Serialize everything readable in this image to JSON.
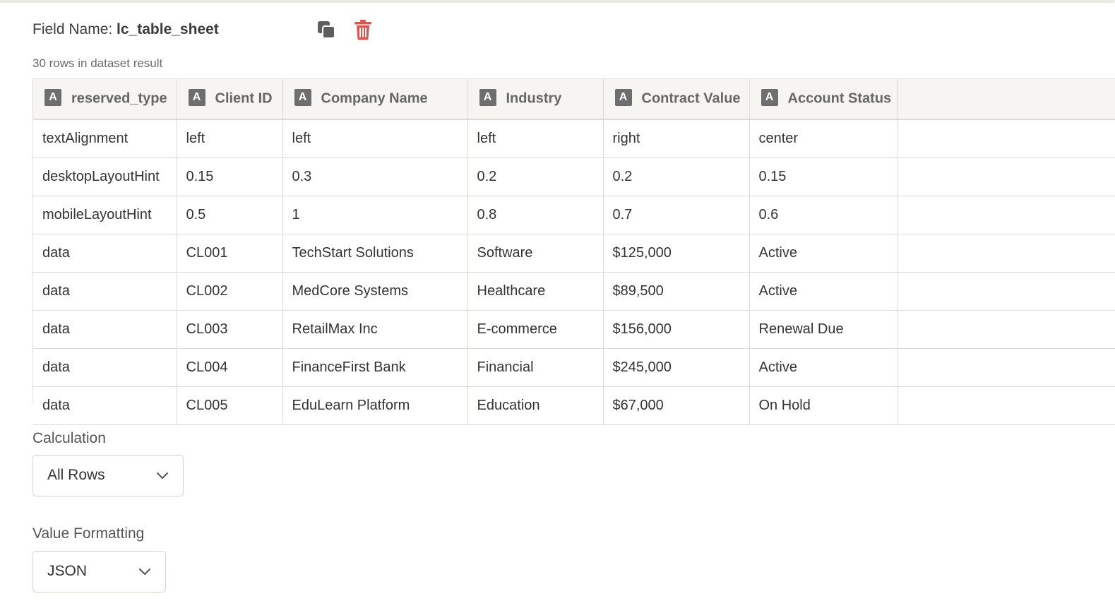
{
  "field": {
    "label": "Field Name: ",
    "name": "lc_table_sheet",
    "copy_icon": "copy-icon",
    "delete_icon": "trash-icon",
    "delete_color": "#d9534f"
  },
  "dataset": {
    "row_count_text": "30 rows in dataset result"
  },
  "table": {
    "type_badge": "A",
    "columns": [
      "reserved_type",
      "Client ID",
      "Company Name",
      "Industry",
      "Contract Value",
      "Account Status"
    ],
    "rows": [
      [
        "textAlignment",
        "left",
        "left",
        "left",
        "right",
        "center"
      ],
      [
        "desktopLayoutHint",
        "0.15",
        "0.3",
        "0.2",
        "0.2",
        "0.15"
      ],
      [
        "mobileLayoutHint",
        "0.5",
        "1",
        "0.8",
        "0.7",
        "0.6"
      ],
      [
        "data",
        "CL001",
        "TechStart Solutions",
        "Software",
        "$125,000",
        "Active"
      ],
      [
        "data",
        "CL002",
        "MedCore Systems",
        "Healthcare",
        "$89,500",
        "Active"
      ],
      [
        "data",
        "CL003",
        "RetailMax Inc",
        "E-commerce",
        "$156,000",
        "Renewal Due"
      ],
      [
        "data",
        "CL004",
        "FinanceFirst Bank",
        "Financial",
        "$245,000",
        "Active"
      ],
      [
        "data",
        "CL005",
        "EduLearn Platform",
        "Education",
        "$67,000",
        "On Hold"
      ]
    ]
  },
  "calculation": {
    "label": "Calculation",
    "selected": "All Rows"
  },
  "value_formatting": {
    "label": "Value Formatting",
    "selected": "JSON"
  }
}
